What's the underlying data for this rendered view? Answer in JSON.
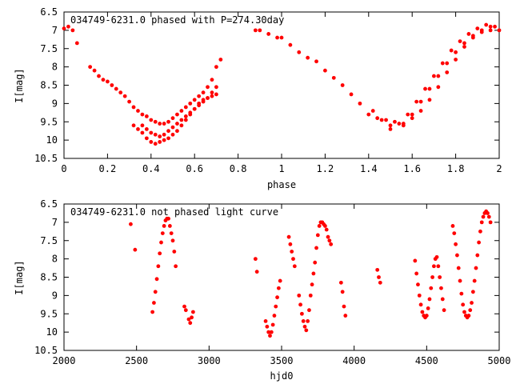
{
  "colors": {
    "points": "#ff0000",
    "axes": "#000000",
    "background": "#ffffff"
  },
  "chart_data": [
    {
      "type": "scatter",
      "title": "034749-6231.0 phased with P=274.30day",
      "xlabel": "phase",
      "ylabel": "I[mag]",
      "xlim": [
        0,
        2
      ],
      "ylim": [
        10.5,
        6.5
      ],
      "y_inverted": true,
      "xticks": [
        "0",
        "0.2",
        "0.4",
        "0.6",
        "0.8",
        "1",
        "1.2",
        "1.4",
        "1.6",
        "1.8",
        "2"
      ],
      "yticks": [
        "6.5",
        "7",
        "7.5",
        "8",
        "8.5",
        "9",
        "9.5",
        "10",
        "10.5"
      ],
      "series": [
        {
          "x": [
            0.0,
            0.02,
            0.04,
            0.06,
            0.12,
            0.14,
            0.16,
            0.18,
            0.2,
            0.22,
            0.24,
            0.26,
            0.28,
            0.3,
            0.32,
            0.34,
            0.36,
            0.38,
            0.4,
            0.42,
            0.44,
            0.46,
            0.48,
            0.5,
            0.52,
            0.54,
            0.56,
            0.58,
            0.6,
            0.62,
            0.64,
            0.66,
            0.68,
            0.7,
            0.72,
            0.36,
            0.38,
            0.4,
            0.42,
            0.44,
            0.46,
            0.48,
            0.5,
            0.52,
            0.54,
            0.56,
            0.58,
            0.6,
            0.62,
            0.64,
            0.66,
            0.68,
            0.7,
            0.32,
            0.34,
            0.36,
            0.38,
            0.4,
            0.42,
            0.44,
            0.46,
            0.48,
            0.5,
            0.52,
            0.54,
            0.56,
            0.58,
            0.6,
            0.62,
            0.64,
            0.66,
            0.68,
            0.7,
            0.88,
            0.9,
            0.94,
            0.98,
            1.0,
            1.04,
            1.08,
            1.12,
            1.16,
            1.2,
            1.24,
            1.28,
            1.32,
            1.36,
            1.4,
            1.44,
            1.48,
            1.52,
            1.56,
            1.6,
            1.64,
            1.68,
            1.72,
            1.76,
            1.8,
            1.84,
            1.88,
            1.92,
            1.96,
            2.0,
            1.5,
            1.54,
            1.58,
            1.62,
            1.66,
            1.7,
            1.74,
            1.78,
            1.82,
            1.86,
            1.9,
            1.94,
            1.98,
            1.42,
            1.46,
            1.5,
            1.56,
            1.6,
            1.64,
            1.68,
            1.72,
            1.76,
            1.8,
            1.84,
            1.88,
            1.92,
            1.96
          ],
          "y": [
            6.95,
            6.9,
            7.0,
            7.35,
            8.0,
            8.1,
            8.25,
            8.35,
            8.4,
            8.5,
            8.6,
            8.7,
            8.8,
            8.95,
            9.1,
            9.2,
            9.3,
            9.35,
            9.45,
            9.5,
            9.55,
            9.55,
            9.5,
            9.4,
            9.3,
            9.2,
            9.1,
            9.0,
            8.9,
            8.8,
            8.7,
            8.55,
            8.35,
            8.0,
            7.8,
            9.6,
            9.7,
            9.8,
            9.85,
            9.9,
            9.85,
            9.75,
            9.65,
            9.55,
            9.45,
            9.35,
            9.25,
            9.15,
            9.05,
            8.95,
            8.85,
            8.7,
            8.55,
            9.6,
            9.7,
            9.8,
            9.95,
            10.05,
            10.1,
            10.05,
            10.0,
            9.95,
            9.85,
            9.75,
            9.6,
            9.45,
            9.3,
            9.15,
            9.0,
            8.9,
            8.85,
            8.8,
            8.75,
            7.0,
            7.0,
            7.1,
            7.2,
            7.2,
            7.4,
            7.6,
            7.75,
            7.85,
            8.1,
            8.3,
            8.5,
            8.75,
            9.0,
            9.3,
            9.4,
            9.45,
            9.5,
            9.55,
            9.4,
            9.2,
            8.9,
            8.55,
            8.15,
            7.8,
            7.45,
            7.2,
            7.0,
            6.9,
            7.0,
            9.6,
            9.55,
            9.3,
            8.95,
            8.6,
            8.25,
            7.9,
            7.55,
            7.3,
            7.1,
            6.95,
            6.85,
            6.9,
            9.2,
            9.45,
            9.7,
            9.6,
            9.3,
            8.95,
            8.6,
            8.25,
            7.9,
            7.6,
            7.35,
            7.15,
            7.05,
            7.0
          ]
        }
      ]
    },
    {
      "type": "scatter",
      "title": "034749-6231.0 not phased light curve",
      "xlabel": "hjd0",
      "ylabel": "I[mag]",
      "xlim": [
        2000,
        5000
      ],
      "ylim": [
        10.5,
        6.5
      ],
      "y_inverted": true,
      "xticks": [
        "2000",
        "2500",
        "3000",
        "3500",
        "4000",
        "4500",
        "5000"
      ],
      "yticks": [
        "6.5",
        "7",
        "7.5",
        "8",
        "8.5",
        "9",
        "9.5",
        "10",
        "10.5"
      ],
      "series": [
        {
          "x": [
            2460,
            2490,
            2610,
            2620,
            2630,
            2640,
            2650,
            2660,
            2670,
            2680,
            2690,
            2700,
            2710,
            2720,
            2730,
            2740,
            2750,
            2760,
            2770,
            2830,
            2840,
            2860,
            2870,
            2880,
            2890,
            3320,
            3330,
            3390,
            3400,
            3410,
            3420,
            3430,
            3440,
            3450,
            3460,
            3470,
            3480,
            3490,
            3550,
            3560,
            3570,
            3580,
            3590,
            3620,
            3630,
            3640,
            3650,
            3660,
            3670,
            3680,
            3690,
            3700,
            3710,
            3720,
            3730,
            3740,
            3750,
            3760,
            3770,
            3780,
            3790,
            3800,
            3810,
            3820,
            3830,
            3840,
            3910,
            3920,
            3930,
            3940,
            4160,
            4170,
            4180,
            4420,
            4430,
            4440,
            4450,
            4460,
            4470,
            4480,
            4490,
            4500,
            4510,
            4520,
            4530,
            4540,
            4550,
            4560,
            4570,
            4580,
            4590,
            4600,
            4610,
            4620,
            4680,
            4690,
            4700,
            4710,
            4720,
            4730,
            4740,
            4750,
            4760,
            4770,
            4780,
            4790,
            4800,
            4810,
            4820,
            4830,
            4840,
            4850,
            4860,
            4870,
            4880,
            4890,
            4900,
            4910,
            4920,
            4930,
            4940
          ],
          "y": [
            7.05,
            7.75,
            9.45,
            9.2,
            8.9,
            8.55,
            8.2,
            7.85,
            7.55,
            7.3,
            7.1,
            6.95,
            6.9,
            6.9,
            7.1,
            7.3,
            7.5,
            7.8,
            8.2,
            9.3,
            9.4,
            9.65,
            9.75,
            9.6,
            9.45,
            8.0,
            8.35,
            9.7,
            9.85,
            10.0,
            10.1,
            10.0,
            9.8,
            9.55,
            9.3,
            9.05,
            8.8,
            8.6,
            7.4,
            7.6,
            7.8,
            8.0,
            8.2,
            9.0,
            9.25,
            9.5,
            9.7,
            9.85,
            9.95,
            9.7,
            9.4,
            9.0,
            8.7,
            8.4,
            8.1,
            7.7,
            7.35,
            7.1,
            7.0,
            7.0,
            7.05,
            7.1,
            7.2,
            7.4,
            7.5,
            7.6,
            8.65,
            8.9,
            9.3,
            9.55,
            8.3,
            8.5,
            8.65,
            8.05,
            8.4,
            8.7,
            9.0,
            9.25,
            9.45,
            9.55,
            9.6,
            9.55,
            9.35,
            9.1,
            8.8,
            8.5,
            8.2,
            8.0,
            7.95,
            8.2,
            8.5,
            8.8,
            9.1,
            9.4,
            7.1,
            7.3,
            7.6,
            7.9,
            8.25,
            8.6,
            8.95,
            9.25,
            9.45,
            9.55,
            9.6,
            9.55,
            9.4,
            9.2,
            8.9,
            8.6,
            8.25,
            7.9,
            7.55,
            7.25,
            7.0,
            6.85,
            6.75,
            6.7,
            6.75,
            6.85,
            7.0
          ]
        }
      ]
    }
  ]
}
